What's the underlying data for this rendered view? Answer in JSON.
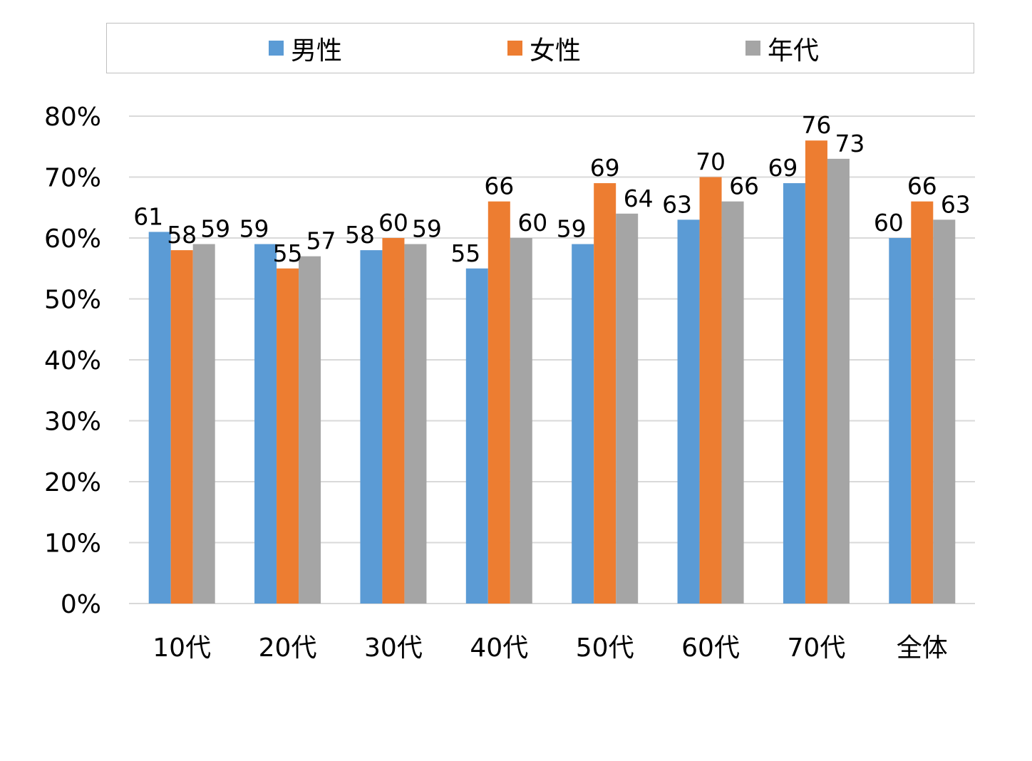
{
  "chart_data": {
    "type": "bar",
    "categories": [
      "10代",
      "20代",
      "30代",
      "40代",
      "50代",
      "60代",
      "70代",
      "全体"
    ],
    "series": [
      {
        "name": "男性",
        "color": "#5b9bd5",
        "values": [
          61,
          59,
          58,
          55,
          59,
          63,
          69,
          60
        ]
      },
      {
        "name": "女性",
        "color": "#ed7d31",
        "values": [
          58,
          55,
          60,
          66,
          69,
          70,
          76,
          66
        ]
      },
      {
        "name": "年代",
        "color": "#a5a5a5",
        "values": [
          59,
          57,
          59,
          60,
          64,
          66,
          73,
          63
        ]
      }
    ],
    "ylim": [
      0,
      80
    ],
    "yticks": [
      0,
      10,
      20,
      30,
      40,
      50,
      60,
      70,
      80
    ],
    "ytick_labels": [
      "0%",
      "10%",
      "20%",
      "30%",
      "40%",
      "50%",
      "60%",
      "70%",
      "80%"
    ],
    "title": "",
    "xlabel": "",
    "ylabel": "",
    "grid": true,
    "legend_position": "top"
  }
}
